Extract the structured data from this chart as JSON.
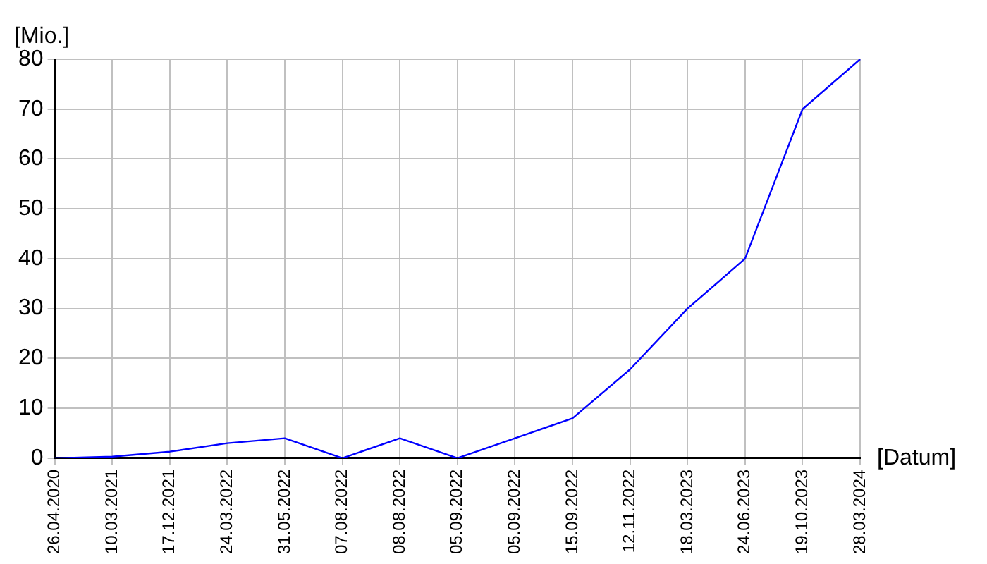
{
  "chart_data": {
    "type": "line",
    "xlabel": "[Datum]",
    "ylabel": "[Mio.]",
    "categories": [
      "26.04.2020",
      "10.03.2021",
      "17.12.2021",
      "24.03.2022",
      "31.05.2022",
      "07.08.2022",
      "08.08.2022",
      "05.09.2022",
      "05.09.2022",
      "15.09.2022",
      "12.11.2022",
      "18.03.2023",
      "24.06.2023",
      "19.10.2023",
      "28.03.2024"
    ],
    "series": [
      {
        "color": "#0000ff",
        "values": [
          0,
          0.3,
          1.3,
          3,
          4,
          0,
          4,
          0,
          4,
          8,
          17.8,
          30,
          40,
          70,
          80
        ]
      }
    ],
    "ylim": [
      0,
      80
    ],
    "yticks": [
      0,
      10,
      20,
      30,
      40,
      50,
      60,
      70,
      80
    ],
    "grid": true,
    "marker": "none",
    "line_style": "solid",
    "legend": false
  }
}
